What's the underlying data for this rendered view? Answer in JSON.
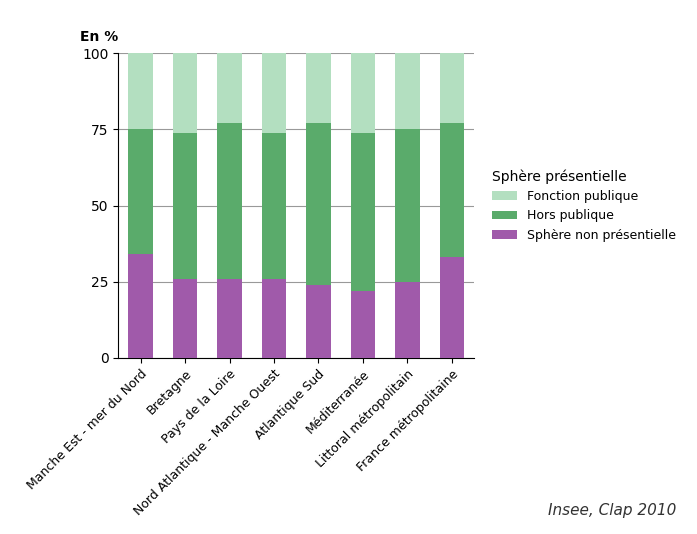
{
  "chart_data": {
    "type": "bar",
    "stacked": true,
    "y_label": "En %",
    "legend_title": "Sphère présentielle",
    "annotations": [
      "Insee, Clap 2010"
    ],
    "categories": [
      "Manche Est - mer du Nord",
      "Bretagne",
      "Pays de la Loire",
      "Nord Atlantique - Manche Ouest",
      "Atlantique Sud",
      "Méditerranée",
      "Littoral métropolitain",
      "France métropolitaine"
    ],
    "series": [
      {
        "name": "Sphère non présentielle",
        "color": "#a05aaa",
        "values": [
          34,
          26,
          26,
          26,
          24,
          22,
          25,
          33
        ]
      },
      {
        "name": "Hors publique",
        "color": "#5aab6b",
        "values": [
          41,
          48,
          51,
          48,
          53,
          52,
          50,
          44
        ]
      },
      {
        "name": "Fonction publique",
        "color": "#b3dfc0",
        "values": [
          25,
          26,
          23,
          26,
          23,
          26,
          25,
          23
        ]
      }
    ],
    "ylim": [
      0,
      100
    ],
    "yticks": [
      0,
      25,
      50,
      75,
      100
    ],
    "grid": true,
    "legend": "center left"
  }
}
